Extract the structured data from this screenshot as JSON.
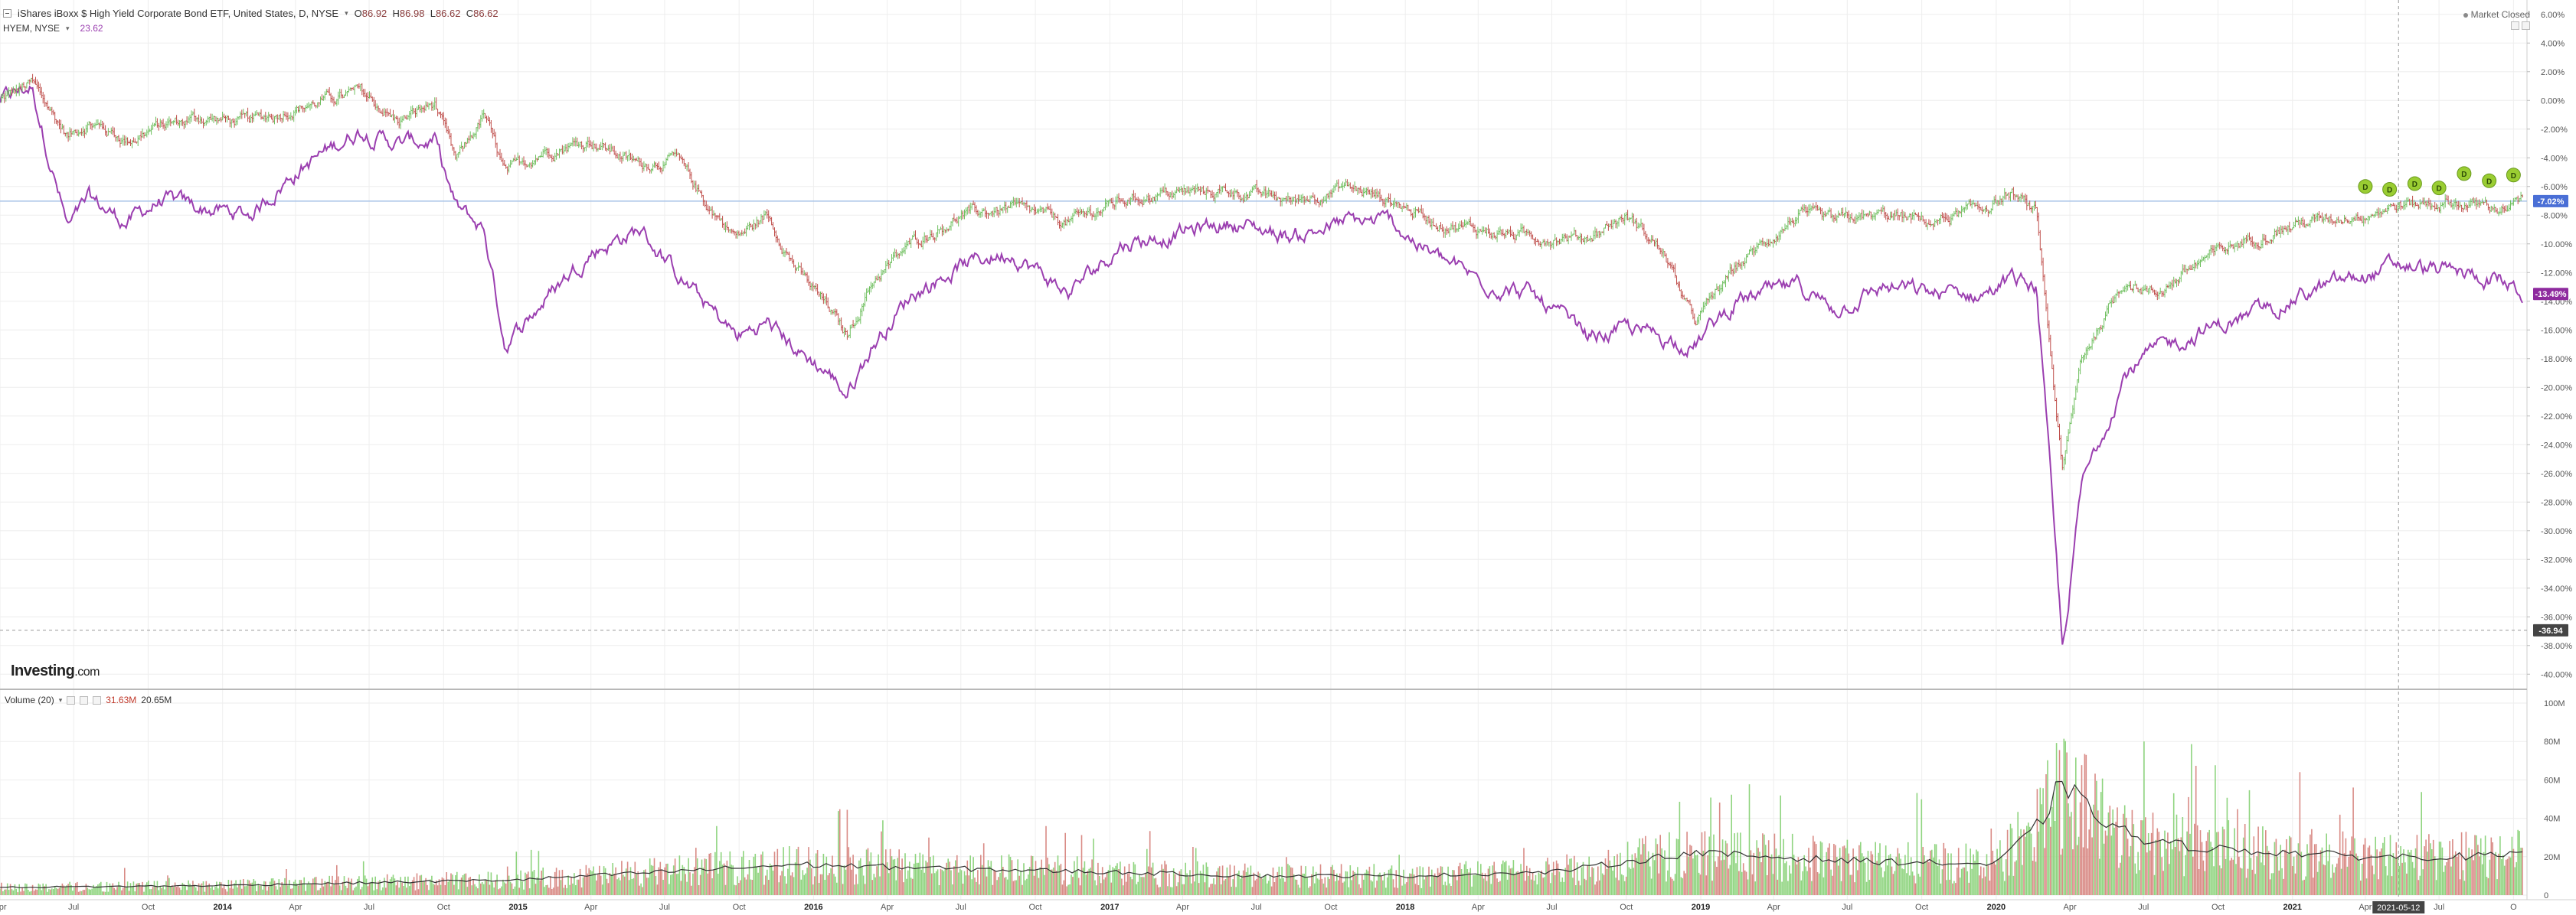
{
  "header": {
    "symbol_title": "iShares iBoxx $ High Yield Corporate Bond ETF, United States, D, NYSE",
    "ohlc": [
      {
        "label": "O",
        "value": "86.92"
      },
      {
        "label": "H",
        "value": "86.98"
      },
      {
        "label": "L",
        "value": "86.62"
      },
      {
        "label": "C",
        "value": "86.62"
      }
    ],
    "compare_symbol": "HYEM, NYSE",
    "compare_value": "23.62",
    "market_status": "Market Closed"
  },
  "brand": {
    "name": "Investing",
    "suffix": ".com"
  },
  "volume_legend": {
    "label": "Volume (20)",
    "value1": "31.63M",
    "value2": "20.65M"
  },
  "price_axis": {
    "ticks": [
      "6.00%",
      "4.00%",
      "2.00%",
      "0.00%",
      "-2.00%",
      "-4.00%",
      "-6.00%",
      "-8.00%",
      "-10.00%",
      "-12.00%",
      "-14.00%",
      "-16.00%",
      "-18.00%",
      "-20.00%",
      "-22.00%",
      "-24.00%",
      "-26.00%",
      "-28.00%",
      "-30.00%",
      "-32.00%",
      "-34.00%",
      "-36.00%",
      "-38.00%",
      "-40.00%"
    ],
    "tick_values": [
      6,
      4,
      2,
      0,
      -2,
      -4,
      -6,
      -8,
      -10,
      -12,
      -14,
      -16,
      -18,
      -20,
      -22,
      -24,
      -26,
      -28,
      -30,
      -32,
      -34,
      -36,
      -38,
      -40
    ],
    "last_hyg_label": "-7.02%",
    "last_hyg_value": -7.02,
    "last_hyem_label": "-13.49%",
    "last_hyem_value": -13.49,
    "crosshair_label": "-36.94",
    "crosshair_value": -36.94
  },
  "volume_axis": {
    "ticks": [
      "100M",
      "80M",
      "60M",
      "40M",
      "20M",
      "0"
    ],
    "tick_values": [
      100,
      80,
      60,
      40,
      20,
      0
    ]
  },
  "time_axis": {
    "ticks": [
      "Apr",
      "Jul",
      "Oct",
      "2014",
      "Apr",
      "Jul",
      "Oct",
      "2015",
      "Apr",
      "Jul",
      "Oct",
      "2016",
      "Apr",
      "Jul",
      "Oct",
      "2017",
      "Apr",
      "Jul",
      "Oct",
      "2018",
      "Apr",
      "Jul",
      "Oct",
      "2019",
      "Apr",
      "Jul",
      "Oct",
      "2020",
      "Apr",
      "Jul",
      "Oct",
      "2021",
      "Apr",
      "Jul",
      "O"
    ],
    "tick_dates": [
      "2013-04-01",
      "2013-07-01",
      "2013-10-01",
      "2014-01-01",
      "2014-04-01",
      "2014-07-01",
      "2014-10-01",
      "2015-01-01",
      "2015-04-01",
      "2015-07-01",
      "2015-10-01",
      "2016-01-01",
      "2016-04-01",
      "2016-07-01",
      "2016-10-01",
      "2017-01-01",
      "2017-04-01",
      "2017-07-01",
      "2017-10-01",
      "2018-01-01",
      "2018-04-01",
      "2018-07-01",
      "2018-10-01",
      "2019-01-01",
      "2019-04-01",
      "2019-07-01",
      "2019-10-01",
      "2020-01-01",
      "2020-04-01",
      "2020-07-01",
      "2020-10-01",
      "2021-01-01",
      "2021-04-01",
      "2021-07-01",
      "2021-10-01"
    ],
    "crosshair_date_label": "2021-05-12",
    "crosshair_date": "2021-05-12"
  },
  "colors": {
    "hyg_up": "#6fbf5f",
    "hyg_down": "#c0504d",
    "hyem": "#9b3fb0",
    "hyg_badge": "#4a6fd6",
    "hyem_badge": "#8e2a9e",
    "dividend": "#9acd32",
    "vol_up": "#8fd47f",
    "vol_down": "#d98b86",
    "vol_ma": "#333333",
    "grid": "#eeeeee",
    "price_line": "#a9c4e8"
  },
  "dividend_marker": {
    "label": "D",
    "dates": [
      "2021-04-01",
      "2021-05-01",
      "2021-06-01",
      "2021-07-01",
      "2021-08-01",
      "2021-09-01",
      "2021-10-01"
    ],
    "values": [
      -6.0,
      -6.2,
      -5.8,
      -6.1,
      -5.1,
      -5.6,
      -5.2
    ]
  },
  "chart_data": {
    "type": "line",
    "x_range": [
      "2013-04-01",
      "2021-10-12"
    ],
    "ylim": [
      -41,
      7
    ],
    "y_unit": "%",
    "volume_ylim": [
      0,
      106
    ],
    "volume_unit": "M",
    "grid": true,
    "series": [
      {
        "name": "HYG",
        "style": "ohlc",
        "x": [
          "2013-04-01",
          "2013-05-10",
          "2013-06-24",
          "2013-07-20",
          "2013-09-05",
          "2013-10-15",
          "2013-12-01",
          "2014-02-03",
          "2014-04-01",
          "2014-06-20",
          "2014-08-05",
          "2014-09-20",
          "2014-10-16",
          "2014-11-20",
          "2014-12-16",
          "2015-02-01",
          "2015-04-01",
          "2015-06-01",
          "2015-07-15",
          "2015-08-25",
          "2015-09-29",
          "2015-11-05",
          "2015-12-14",
          "2016-01-20",
          "2016-02-11",
          "2016-03-15",
          "2016-05-01",
          "2016-07-01",
          "2016-09-01",
          "2016-11-10",
          "2017-01-15",
          "2017-03-05",
          "2017-06-01",
          "2017-08-15",
          "2017-10-20",
          "2017-12-15",
          "2018-02-09",
          "2018-04-01",
          "2018-06-01",
          "2018-08-15",
          "2018-10-01",
          "2018-11-15",
          "2018-12-24",
          "2019-02-15",
          "2019-05-01",
          "2019-06-15",
          "2019-08-15",
          "2019-10-15",
          "2019-12-15",
          "2020-01-20",
          "2020-02-20",
          "2020-03-23",
          "2020-04-15",
          "2020-06-08",
          "2020-07-15",
          "2020-09-15",
          "2020-11-15",
          "2021-01-15",
          "2021-03-15",
          "2021-05-12",
          "2021-07-15",
          "2021-09-15",
          "2021-10-12"
        ],
        "values": [
          0.0,
          1.2,
          -2.5,
          -1.5,
          -2.8,
          -1.8,
          -1.2,
          -1.5,
          -0.5,
          0.6,
          -1.5,
          -0.2,
          -4.3,
          -1.0,
          -5.2,
          -3.5,
          -2.8,
          -4.5,
          -4.0,
          -7.5,
          -9.5,
          -8.0,
          -12.0,
          -14.5,
          -16.5,
          -12.5,
          -10.0,
          -8.0,
          -7.5,
          -8.5,
          -7.0,
          -6.5,
          -6.3,
          -7.0,
          -6.0,
          -7.0,
          -8.5,
          -9.0,
          -9.5,
          -9.5,
          -8.0,
          -10.5,
          -15.5,
          -11.5,
          -8.0,
          -8.5,
          -8.0,
          -8.5,
          -7.5,
          -6.5,
          -8.0,
          -26.0,
          -18.0,
          -12.5,
          -13.5,
          -11.0,
          -9.5,
          -8.5,
          -8.0,
          -7.3,
          -7.1,
          -7.5,
          -7.02
        ]
      },
      {
        "name": "HYEM",
        "style": "line",
        "x": [
          "2013-04-01",
          "2013-05-10",
          "2013-06-24",
          "2013-07-20",
          "2013-09-05",
          "2013-10-15",
          "2013-12-01",
          "2014-02-03",
          "2014-04-01",
          "2014-06-20",
          "2014-08-05",
          "2014-09-20",
          "2014-10-16",
          "2014-11-20",
          "2014-12-16",
          "2015-02-01",
          "2015-04-01",
          "2015-06-01",
          "2015-07-15",
          "2015-08-25",
          "2015-09-29",
          "2015-11-05",
          "2015-12-14",
          "2016-01-20",
          "2016-02-11",
          "2016-03-15",
          "2016-05-01",
          "2016-07-01",
          "2016-09-01",
          "2016-11-10",
          "2017-01-15",
          "2017-03-05",
          "2017-06-01",
          "2017-08-15",
          "2017-10-20",
          "2017-12-15",
          "2018-02-09",
          "2018-04-01",
          "2018-06-01",
          "2018-08-15",
          "2018-10-01",
          "2018-11-15",
          "2018-12-24",
          "2019-02-15",
          "2019-05-01",
          "2019-06-15",
          "2019-08-15",
          "2019-10-15",
          "2019-12-15",
          "2020-01-20",
          "2020-02-20",
          "2020-03-23",
          "2020-04-15",
          "2020-06-08",
          "2020-07-15",
          "2020-09-15",
          "2020-11-15",
          "2021-01-15",
          "2021-03-15",
          "2021-05-12",
          "2021-07-15",
          "2021-09-15",
          "2021-10-12"
        ],
        "values": [
          0.0,
          1.0,
          -9.0,
          -7.0,
          -8.5,
          -7.0,
          -7.5,
          -8.0,
          -5.0,
          -2.0,
          -3.0,
          -2.8,
          -7.5,
          -9.0,
          -17.0,
          -14.0,
          -10.5,
          -9.0,
          -12.0,
          -14.5,
          -16.5,
          -15.5,
          -17.5,
          -19.0,
          -20.5,
          -17.0,
          -13.5,
          -11.5,
          -10.5,
          -13.5,
          -10.0,
          -9.5,
          -8.5,
          -9.5,
          -8.5,
          -8.5,
          -11.0,
          -12.5,
          -13.5,
          -16.5,
          -16.0,
          -16.5,
          -17.0,
          -14.0,
          -13.0,
          -14.5,
          -13.0,
          -13.5,
          -13.5,
          -12.5,
          -13.0,
          -38.5,
          -27.0,
          -19.0,
          -17.5,
          -16.0,
          -15.0,
          -13.5,
          -12.5,
          -11.5,
          -12.0,
          -12.5,
          -13.49
        ]
      }
    ],
    "volume": {
      "x": [
        "2013-04-01",
        "2014-01-01",
        "2015-01-01",
        "2015-12-14",
        "2016-06-01",
        "2017-01-01",
        "2017-07-01",
        "2018-01-01",
        "2018-07-01",
        "2018-12-20",
        "2019-07-01",
        "2020-01-01",
        "2020-03-01",
        "2020-03-20",
        "2020-05-01",
        "2020-07-01",
        "2020-10-01",
        "2021-01-01",
        "2021-04-01",
        "2021-07-01",
        "2021-10-12"
      ],
      "ma": [
        4,
        5,
        8,
        16,
        14,
        12,
        10,
        10,
        12,
        22,
        18,
        16,
        40,
        60,
        42,
        28,
        24,
        22,
        20,
        20,
        20.65
      ]
    }
  }
}
